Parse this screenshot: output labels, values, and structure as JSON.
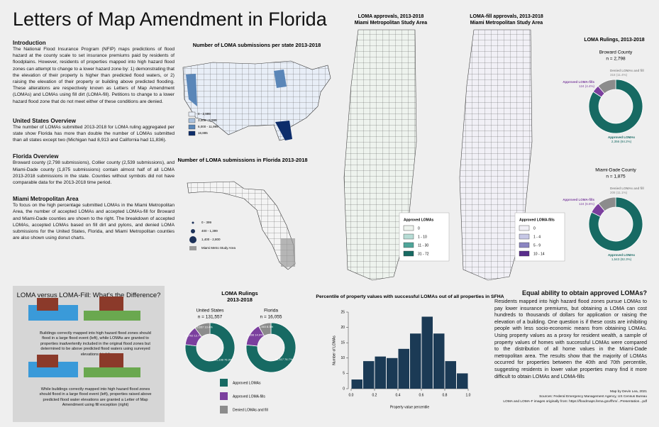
{
  "title": "Letters of Map Amendment in Florida",
  "sections": [
    {
      "heading": "Introduction",
      "text": "The National Flood Insurance Program (NFIP) maps predictions of flood hazard at the county scale to set insurance premiums paid by residents of floodplains. However, residents of properties mapped into high hazard flood zones can attempt to change to a lower hazard zone by: 1) demonstrating that the elevation of their property is higher than predicted flood waters, or 2) raising the elevation of their property or building above predicted flooding. These alterations are respectively known as Letters of Map Amendment (LOMAs) and LOMAs using fill dirt (LOMA-fill). Petitions to change to a lower hazard flood zone that do not meet either of these conditions are denied."
    },
    {
      "heading": "United States Overview",
      "text": "The number of LOMAs submitted 2013-2018 for LOMA ruling aggregated per state show Florida has more than double the number of LOMAs submitted than all states except two (Michigan had 8,913 and California had 11,836)."
    },
    {
      "heading": "Florida Overview",
      "text": "Broward county (2,798 submissions), Collier county (2,539 submissions), and Miami-Dade county (1,875 submissions) contain almost half of all LOMA 2013-2018 submissions in the state. Counties without symbols did not have comparable data for the 2013-2018 time period."
    },
    {
      "heading": "Miami Metropolitan Area",
      "text": "To focus on the high percentage submitted LOMAs in the Miami Metropolitan Area, the number of accepted LOMAs and accepted LOMAs-fill for Broward and Miami-Dade counties are shown to the right. The breakdown of accepted LOMAs, accepted LOMAs based on fill dirt and pylons, and denied LOMA submissions for the United States, Florida, and Miami Metropolitan counties are also shown using donut charts."
    }
  ],
  "us_map": {
    "title": "Number of LOMA submissions per state 2013-2018",
    "legend": [
      "0 - 2,999",
      "3,000 - 5,999",
      "6,000 - 11,999",
      "16,885"
    ],
    "colors": [
      "#e8eef7",
      "#a9c1dd",
      "#5a86b8",
      "#0d2d6b"
    ]
  },
  "fl_map": {
    "title": "Number of LOMA submissions in Florida 2013-2018",
    "legend": [
      "0 - 399",
      "400 - 1,399",
      "1,400 - 2,800",
      "Miami Metro Study Area"
    ]
  },
  "miami_maps": [
    {
      "title": "LOMA approvals, 2013-2018",
      "subtitle": "Miami Metropolitan Study Area",
      "legend_title": "Approved LOMAs",
      "legend": [
        "0",
        "1 - 10",
        "11 - 30",
        "31 - 72"
      ],
      "colors": [
        "#eef3ee",
        "#b7dcd5",
        "#4fa59a",
        "#176a63"
      ]
    },
    {
      "title": "LOMA-fill approvals, 2013-2018",
      "subtitle": "Miami Metropolitan Study Area",
      "legend_title": "Approved LOMA-fills",
      "legend": [
        "0",
        "1 - 4",
        "5 - 9",
        "10 - 14"
      ],
      "colors": [
        "#f1f0f6",
        "#c6c7e5",
        "#8c86c2",
        "#5a2d8c"
      ]
    }
  ],
  "comparison": {
    "title": "LOMA versus LOMA-Fill: What's the Difference?",
    "captions": [
      "Buildings correctly mapped into high hazard flood zones should flood in a large flood event (left), while LOMAs are granted to properties inadvertently included in the original flood zones but determined to be above predicted flood waters using surveyed elevations (right)",
      "While buildings correctly mapped into high hazard flood zones should flood in a large flood event (left), properties raised above predicted flood water elevations are granted a Letter of Map Amendment using fill exception (right)"
    ]
  },
  "loma_rulings": {
    "title": "LOMA Rulings",
    "subtitle": "2013-2018",
    "legend": [
      "Approved LOMAs",
      "Approved LOMA-fills",
      "Denied LOMAs and fill"
    ],
    "colors": [
      "#176a63",
      "#7b3f9e",
      "#8c8c8c"
    ],
    "charts": [
      {
        "name": "United States",
        "n": "n = 131,557",
        "values": [
          101198,
          16702,
          13657
        ],
        "value_labels": [
          "101,198 76.9%",
          "16,702 12.7%",
          "13,657 10.4%"
        ]
      },
      {
        "name": "Florida",
        "n": "n = 16,055",
        "values": [
          12317,
          2398,
          1340
        ],
        "value_labels": [
          "12,317 76.7%",
          "2,398 14.9%",
          "1,340 8.3%"
        ]
      }
    ]
  },
  "county_rulings": {
    "title": "LOMA Rulings, 2013-2018",
    "charts": [
      {
        "name": "Broward County",
        "n": "n = 2,798",
        "values": [
          2356,
          124,
          318
        ],
        "value_labels": [
          "2,356 (84.2%)",
          "124 (4.4%)",
          "318 (11.4%)"
        ]
      },
      {
        "name": "Miami-Dade County",
        "n": "n = 1,875",
        "values": [
          1543,
          124,
          208
        ],
        "value_labels": [
          "1,543 (82.3%)",
          "124 (6.6%)",
          "208 (11.1%)"
        ]
      }
    ]
  },
  "chart_data": {
    "type": "histogram",
    "title": "Percentile of property values with successful LOMAs out of all properties in SFHA",
    "x_label": "Property value percentile",
    "y_label": "Number of LOMAs",
    "color": "#1b3a55",
    "bins": [
      0,
      0.1,
      0.2,
      0.3,
      0.4,
      0.5,
      0.6,
      0.7,
      0.8,
      0.9,
      1.0
    ],
    "values": [
      3,
      9,
      10.5,
      10,
      13,
      18,
      23.5,
      18,
      9,
      5
    ],
    "xlim": [
      0,
      1
    ],
    "ylim": [
      0,
      25
    ],
    "xticks": [
      {
        "value": 0,
        "label": "0.0"
      },
      0.2,
      0.4,
      0.6,
      0.8,
      {
        "value": 1,
        "label": "1.0"
      }
    ],
    "yticks": [
      0,
      5,
      10,
      15,
      20,
      25
    ]
  },
  "equal_ability": {
    "heading": "Equal ability to obtain approved LOMAs?",
    "text": "Residents mapped into high hazard flood zones pursue LOMAs to pay lower insurance premiums, but obtaining a LOMA can cost hundreds to thousands of dollars for application or raising the elevation of a building. One question is if these costs are inhibiting people with less socio-economic means from obtaining LOMAs. Using property values as a proxy for resident wealth, a sample of property values of homes with successful LOMAs were compared to the distribution of all home values in the Miami-Dade metropolitan area. The results show that the majority of LOMAs occurred for properties between the 40th and 70th percentile, suggesting residents in lower value properties many find it more difficult to obtain LOMAs and LOMA-fills"
  },
  "credits": [
    "Map by Devin Lea, 2021",
    "Sources: Federal Emergency Management Agency, US Census Bureau",
    "LOMA and LOMA-F images originally from: https://floodmaps.fema.gov/fhm/...Presentation...pdf"
  ]
}
